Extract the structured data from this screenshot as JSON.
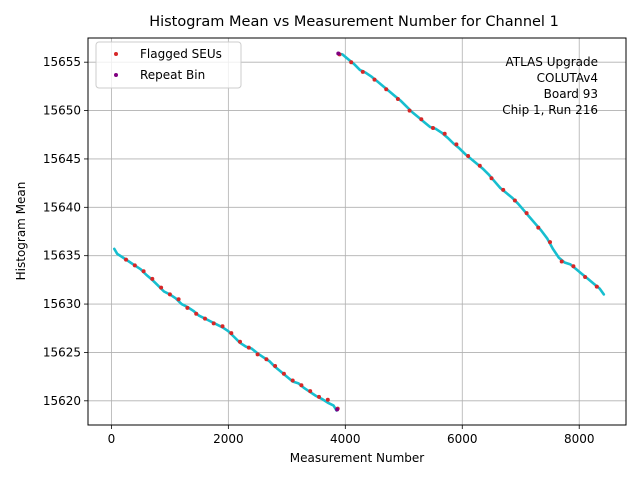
{
  "chart_data": {
    "type": "line",
    "title": "Histogram Mean vs Measurement Number for Channel 1",
    "xlabel": "Measurement Number",
    "ylabel": "Histogram Mean",
    "xlim": [
      -400,
      8800
    ],
    "ylim": [
      15617.5,
      15657.5
    ],
    "xticks": [
      0,
      2000,
      4000,
      6000,
      8000
    ],
    "yticks": [
      15620,
      15625,
      15630,
      15635,
      15640,
      15645,
      15650,
      15655
    ],
    "grid": true,
    "legend": {
      "placement": "top-left",
      "entries": [
        {
          "label": "Flagged SEUs",
          "color": "#d62728"
        },
        {
          "label": "Repeat Bin",
          "color": "#800080"
        }
      ]
    },
    "annotation": [
      "ATLAS Upgrade",
      "COLUTAv4",
      "Board 93",
      "Chip 1, Run 216"
    ],
    "series": [
      {
        "name": "Histogram Mean",
        "color": "#17becf",
        "segments": [
          {
            "x": [
              50,
              100,
              200,
              300,
              400,
              500,
              600,
              700,
              800,
              900,
              1000,
              1100,
              1200,
              1300,
              1400,
              1500,
              1600,
              1700,
              1800,
              1900,
              2000,
              2100,
              2200,
              2300,
              2400,
              2500,
              2600,
              2700,
              2800,
              2900,
              3000,
              3100,
              3200,
              3300,
              3400,
              3500,
              3600,
              3700,
              3800,
              3850
            ],
            "y": [
              15635.7,
              15635.2,
              15634.8,
              15634.4,
              15634.0,
              15633.6,
              15633.0,
              15632.5,
              15631.9,
              15631.3,
              15631.0,
              15630.6,
              15630.0,
              15629.7,
              15629.3,
              15628.8,
              15628.5,
              15628.2,
              15627.9,
              15627.6,
              15627.2,
              15626.6,
              15626.0,
              15625.6,
              15625.4,
              15624.9,
              15624.5,
              15624.1,
              15623.5,
              15623.0,
              15622.5,
              15622.0,
              15621.8,
              15621.3,
              15620.9,
              15620.5,
              15620.2,
              15619.8,
              15619.5,
              15619.0
            ]
          },
          {
            "x": [
              3870,
              3950,
              4050,
              4150,
              4250,
              4350,
              4450,
              4550,
              4650,
              4750,
              4850,
              4950,
              5050,
              5150,
              5250,
              5350,
              5450,
              5550,
              5650,
              5750,
              5850,
              5950,
              6050,
              6150,
              6250,
              6350,
              6450,
              6550,
              6650,
              6750,
              6850,
              6950,
              7050,
              7150,
              7250,
              7350,
              7450,
              7550,
              7650,
              7750,
              7850,
              7950,
              8050,
              8150,
              8250,
              8350,
              8420
            ],
            "y": [
              15655.9,
              15655.8,
              15655.3,
              15654.8,
              15654.2,
              15653.9,
              15653.5,
              15653.0,
              15652.5,
              15652.0,
              15651.5,
              15651.0,
              15650.4,
              15649.8,
              15649.3,
              15648.8,
              15648.3,
              15648.1,
              15647.7,
              15647.2,
              15646.6,
              15646.1,
              15645.5,
              15645.0,
              15644.5,
              15644.0,
              15643.4,
              15642.7,
              15642.0,
              15641.5,
              15641.0,
              15640.4,
              15639.7,
              15639.0,
              15638.3,
              15637.6,
              15636.8,
              15635.7,
              15634.8,
              15634.3,
              15634.1,
              15633.6,
              15633.1,
              15632.6,
              15632.1,
              15631.6,
              15631.0
            ]
          }
        ]
      },
      {
        "name": "Flagged SEUs",
        "color": "#d62728",
        "kind": "markers",
        "points_x": [
          250,
          400,
          550,
          700,
          850,
          1000,
          1150,
          1300,
          1450,
          1600,
          1750,
          1900,
          2050,
          2200,
          2350,
          2500,
          2650,
          2800,
          2950,
          3100,
          3250,
          3400,
          3550,
          3700,
          3870,
          3900,
          4100,
          4300,
          4500,
          4700,
          4900,
          5100,
          5300,
          5500,
          5700,
          5900,
          6100,
          6300,
          6500,
          6700,
          6900,
          7100,
          7300,
          7500,
          7700,
          7900,
          8100,
          8300
        ],
        "points_y": [
          15634.6,
          15634.0,
          15633.4,
          15632.6,
          15631.7,
          15631.0,
          15630.5,
          15629.6,
          15629.0,
          15628.5,
          15628.0,
          15627.7,
          15627.0,
          15626.1,
          15625.5,
          15624.8,
          15624.3,
          15623.6,
          15622.8,
          15622.1,
          15621.6,
          15621.0,
          15620.4,
          15620.1,
          15619.2,
          15655.8,
          15655.0,
          15654.0,
          15653.2,
          15652.2,
          15651.2,
          15650.0,
          15649.1,
          15648.2,
          15647.6,
          15646.5,
          15645.3,
          15644.3,
          15643.0,
          15641.8,
          15640.7,
          15639.4,
          15637.9,
          15636.4,
          15634.4,
          15633.9,
          15632.8,
          15631.8
        ]
      },
      {
        "name": "Repeat Bin",
        "color": "#800080",
        "kind": "markers",
        "points_x": [
          3860,
          3880
        ],
        "points_y": [
          15619.1,
          15655.9
        ]
      }
    ]
  }
}
